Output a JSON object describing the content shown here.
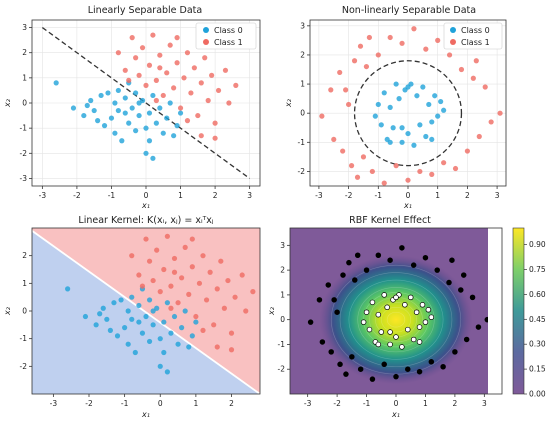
{
  "colors": {
    "class0": "#1fa2da",
    "class1": "#ef6a62",
    "region0": "#bfd0ef",
    "region1": "#f9c1c1",
    "boundary": "#333333",
    "colormap": [
      "#440154",
      "#3b528b",
      "#21918c",
      "#5ec962",
      "#fde725"
    ]
  },
  "chart_data": [
    {
      "type": "scatter",
      "title": "Linearly Separable Data",
      "xlabel": "x₁",
      "ylabel": "x₂",
      "xlim": [
        -3.3,
        3.3
      ],
      "ylim": [
        -3.3,
        3.3
      ],
      "xticks": [
        "-3",
        "-2",
        "-1",
        "0",
        "1",
        "2",
        "3"
      ],
      "yticks": [
        "-3",
        "-2",
        "-1",
        "0",
        "1",
        "2",
        "3"
      ],
      "grid": true,
      "legend_position": "top-right",
      "boundary_line": {
        "style": "dashed",
        "points": [
          [
            -3,
            3
          ],
          [
            3,
            -3
          ]
        ]
      },
      "series": [
        {
          "name": "Class 0",
          "color": "#1fa2da",
          "points": [
            [
              -2.6,
              0.8
            ],
            [
              -2.1,
              -0.2
            ],
            [
              -1.8,
              -0.5
            ],
            [
              -1.6,
              0.1
            ],
            [
              -1.5,
              -0.3
            ],
            [
              -1.3,
              0.3
            ],
            [
              -1.2,
              -0.9
            ],
            [
              -1.1,
              0.4
            ],
            [
              -1.0,
              -0.6
            ],
            [
              -0.9,
              0.0
            ],
            [
              -0.9,
              -1.2
            ],
            [
              -0.8,
              0.5
            ],
            [
              -0.8,
              -0.3
            ],
            [
              -0.7,
              -1.5
            ],
            [
              -0.6,
              0.2
            ],
            [
              -0.5,
              -0.8
            ],
            [
              -0.5,
              0.8
            ],
            [
              -0.4,
              -0.2
            ],
            [
              -0.3,
              -1.1
            ],
            [
              -0.3,
              0.4
            ],
            [
              -0.2,
              -0.5
            ],
            [
              -0.1,
              0.1
            ],
            [
              0.0,
              -1.0
            ],
            [
              0.0,
              -2.0
            ],
            [
              0.1,
              -0.4
            ],
            [
              0.1,
              -1.5
            ],
            [
              0.2,
              0.3
            ],
            [
              0.3,
              -0.8
            ],
            [
              0.4,
              -0.2
            ],
            [
              0.5,
              -1.2
            ],
            [
              0.6,
              -0.6
            ],
            [
              0.7,
              0.0
            ],
            [
              0.9,
              -0.9
            ],
            [
              1.0,
              -0.4
            ],
            [
              -1.4,
              -0.7
            ],
            [
              -0.6,
              -0.4
            ],
            [
              0.2,
              -2.2
            ],
            [
              -0.2,
              0.0
            ],
            [
              0.8,
              -1.3
            ],
            [
              -1.7,
              -0.1
            ]
          ]
        },
        {
          "name": "Class 1",
          "color": "#ef6a62",
          "points": [
            [
              -0.8,
              2.0
            ],
            [
              -0.6,
              1.3
            ],
            [
              -0.4,
              2.6
            ],
            [
              -0.3,
              1.8
            ],
            [
              -0.2,
              1.1
            ],
            [
              -0.1,
              2.2
            ],
            [
              0.0,
              0.7
            ],
            [
              0.1,
              1.5
            ],
            [
              0.2,
              2.7
            ],
            [
              0.3,
              0.9
            ],
            [
              0.4,
              1.9
            ],
            [
              0.5,
              0.3
            ],
            [
              0.6,
              1.2
            ],
            [
              0.7,
              2.3
            ],
            [
              0.8,
              0.6
            ],
            [
              0.9,
              1.6
            ],
            [
              1.0,
              -0.2
            ],
            [
              1.1,
              1.0
            ],
            [
              1.2,
              2.0
            ],
            [
              1.3,
              0.4
            ],
            [
              1.4,
              1.4
            ],
            [
              1.5,
              -0.5
            ],
            [
              1.6,
              0.8
            ],
            [
              1.7,
              1.8
            ],
            [
              1.8,
              0.1
            ],
            [
              1.9,
              1.1
            ],
            [
              2.0,
              -0.8
            ],
            [
              2.1,
              0.5
            ],
            [
              2.3,
              1.3
            ],
            [
              2.4,
              0.0
            ],
            [
              2.6,
              0.7
            ],
            [
              1.2,
              -0.7
            ],
            [
              0.4,
              1.4
            ],
            [
              -0.5,
              0.9
            ],
            [
              0.9,
              2.6
            ],
            [
              1.6,
              -1.3
            ],
            [
              2.0,
              -1.4
            ],
            [
              0.3,
              0.1
            ]
          ]
        }
      ]
    },
    {
      "type": "scatter",
      "title": "Non-linearly Separable Data",
      "xlabel": "x₁",
      "ylabel": "x₂",
      "xlim": [
        -3.3,
        3.3
      ],
      "ylim": [
        -2.5,
        3.2
      ],
      "xticks": [
        "-3",
        "-2",
        "-1",
        "0",
        "1",
        "2",
        "3"
      ],
      "yticks": [
        "-2",
        "-1",
        "0",
        "1",
        "2",
        "3"
      ],
      "grid": true,
      "legend_position": "top-right",
      "boundary_circle": {
        "style": "dashed",
        "center": [
          0,
          0
        ],
        "radius": 1.8
      },
      "series": [
        {
          "name": "Class 0",
          "color": "#1fa2da",
          "points": [
            [
              -1.0,
              0.3
            ],
            [
              -0.9,
              -0.4
            ],
            [
              -0.8,
              0.7
            ],
            [
              -0.7,
              -0.9
            ],
            [
              -0.6,
              0.2
            ],
            [
              -0.5,
              -0.5
            ],
            [
              -0.4,
              1.0
            ],
            [
              -0.3,
              0.5
            ],
            [
              -0.2,
              -1.0
            ],
            [
              -0.1,
              0.8
            ],
            [
              0.0,
              -0.7
            ],
            [
              0.1,
              1.0
            ],
            [
              0.2,
              -1.1
            ],
            [
              0.3,
              0.6
            ],
            [
              0.4,
              -0.4
            ],
            [
              0.5,
              0.9
            ],
            [
              0.6,
              -0.8
            ],
            [
              0.7,
              0.3
            ],
            [
              0.8,
              -0.3
            ],
            [
              0.9,
              0.6
            ],
            [
              1.0,
              -0.1
            ],
            [
              1.1,
              0.4
            ],
            [
              -1.1,
              -0.1
            ],
            [
              0.0,
              0.9
            ],
            [
              -0.6,
              -1.0
            ],
            [
              0.8,
              -0.9
            ],
            [
              1.2,
              0.1
            ],
            [
              -0.2,
              -0.5
            ]
          ]
        },
        {
          "name": "Class 1",
          "color": "#ef6a62",
          "points": [
            [
              -2.9,
              -0.1
            ],
            [
              -2.6,
              0.8
            ],
            [
              -2.5,
              -0.9
            ],
            [
              -2.3,
              1.4
            ],
            [
              -2.2,
              -1.3
            ],
            [
              -2.0,
              0.3
            ],
            [
              -1.9,
              -1.8
            ],
            [
              -1.8,
              1.8
            ],
            [
              -1.7,
              -2.2
            ],
            [
              -1.6,
              2.3
            ],
            [
              -1.5,
              -1.5
            ],
            [
              -1.4,
              1.6
            ],
            [
              -1.2,
              -2.0
            ],
            [
              -1.0,
              2.0
            ],
            [
              -0.8,
              -2.4
            ],
            [
              -0.6,
              2.6
            ],
            [
              -0.4,
              -1.8
            ],
            [
              -0.2,
              2.4
            ],
            [
              0.0,
              -2.3
            ],
            [
              0.2,
              2.9
            ],
            [
              0.4,
              -2.0
            ],
            [
              0.6,
              2.2
            ],
            [
              0.8,
              -2.1
            ],
            [
              1.0,
              2.5
            ],
            [
              1.2,
              -1.7
            ],
            [
              1.4,
              2.0
            ],
            [
              1.6,
              -1.9
            ],
            [
              1.8,
              1.5
            ],
            [
              2.0,
              -1.3
            ],
            [
              2.2,
              1.2
            ],
            [
              2.4,
              -0.8
            ],
            [
              2.6,
              0.9
            ],
            [
              2.8,
              -0.3
            ],
            [
              3.1,
              0.0
            ],
            [
              2.3,
              1.8
            ],
            [
              1.9,
              2.4
            ],
            [
              -2.1,
              0.8
            ],
            [
              -1.3,
              2.6
            ]
          ]
        }
      ]
    },
    {
      "type": "scatter",
      "title": "Linear Kernel: K(xᵢ, xⱼ) = xᵢᵀxⱼ",
      "xlabel": "x₁",
      "ylabel": "x₂",
      "xlim": [
        -3.6,
        2.8
      ],
      "ylim": [
        -3.0,
        3.0
      ],
      "xticks": [
        "-3",
        "-2",
        "-1",
        "0",
        "1",
        "2"
      ],
      "yticks": [
        "-2",
        "-1",
        "0",
        "1",
        "2"
      ],
      "grid": false,
      "decision_boundary": {
        "points": [
          [
            -3.6,
            2.9
          ],
          [
            2.8,
            -3.0
          ]
        ]
      },
      "series_ref": "linearly_separable"
    },
    {
      "type": "heatmap",
      "title": "RBF Kernel Effect",
      "xlabel": "x₁",
      "ylabel": "x₂",
      "xlim": [
        -3.6,
        3.6
      ],
      "ylim": [
        -3.0,
        3.7
      ],
      "xticks": [
        "-3",
        "-2",
        "-1",
        "0",
        "1",
        "2",
        "3"
      ],
      "yticks": [
        "-2",
        "-1",
        "0",
        "1",
        "2",
        "3"
      ],
      "colorbar": {
        "range": [
          0.0,
          1.0
        ],
        "ticks": [
          "0.00",
          "0.15",
          "0.30",
          "0.45",
          "0.60",
          "0.75",
          "0.90"
        ]
      },
      "peak": 1.0,
      "series_ref": "non_linearly_separable"
    }
  ]
}
